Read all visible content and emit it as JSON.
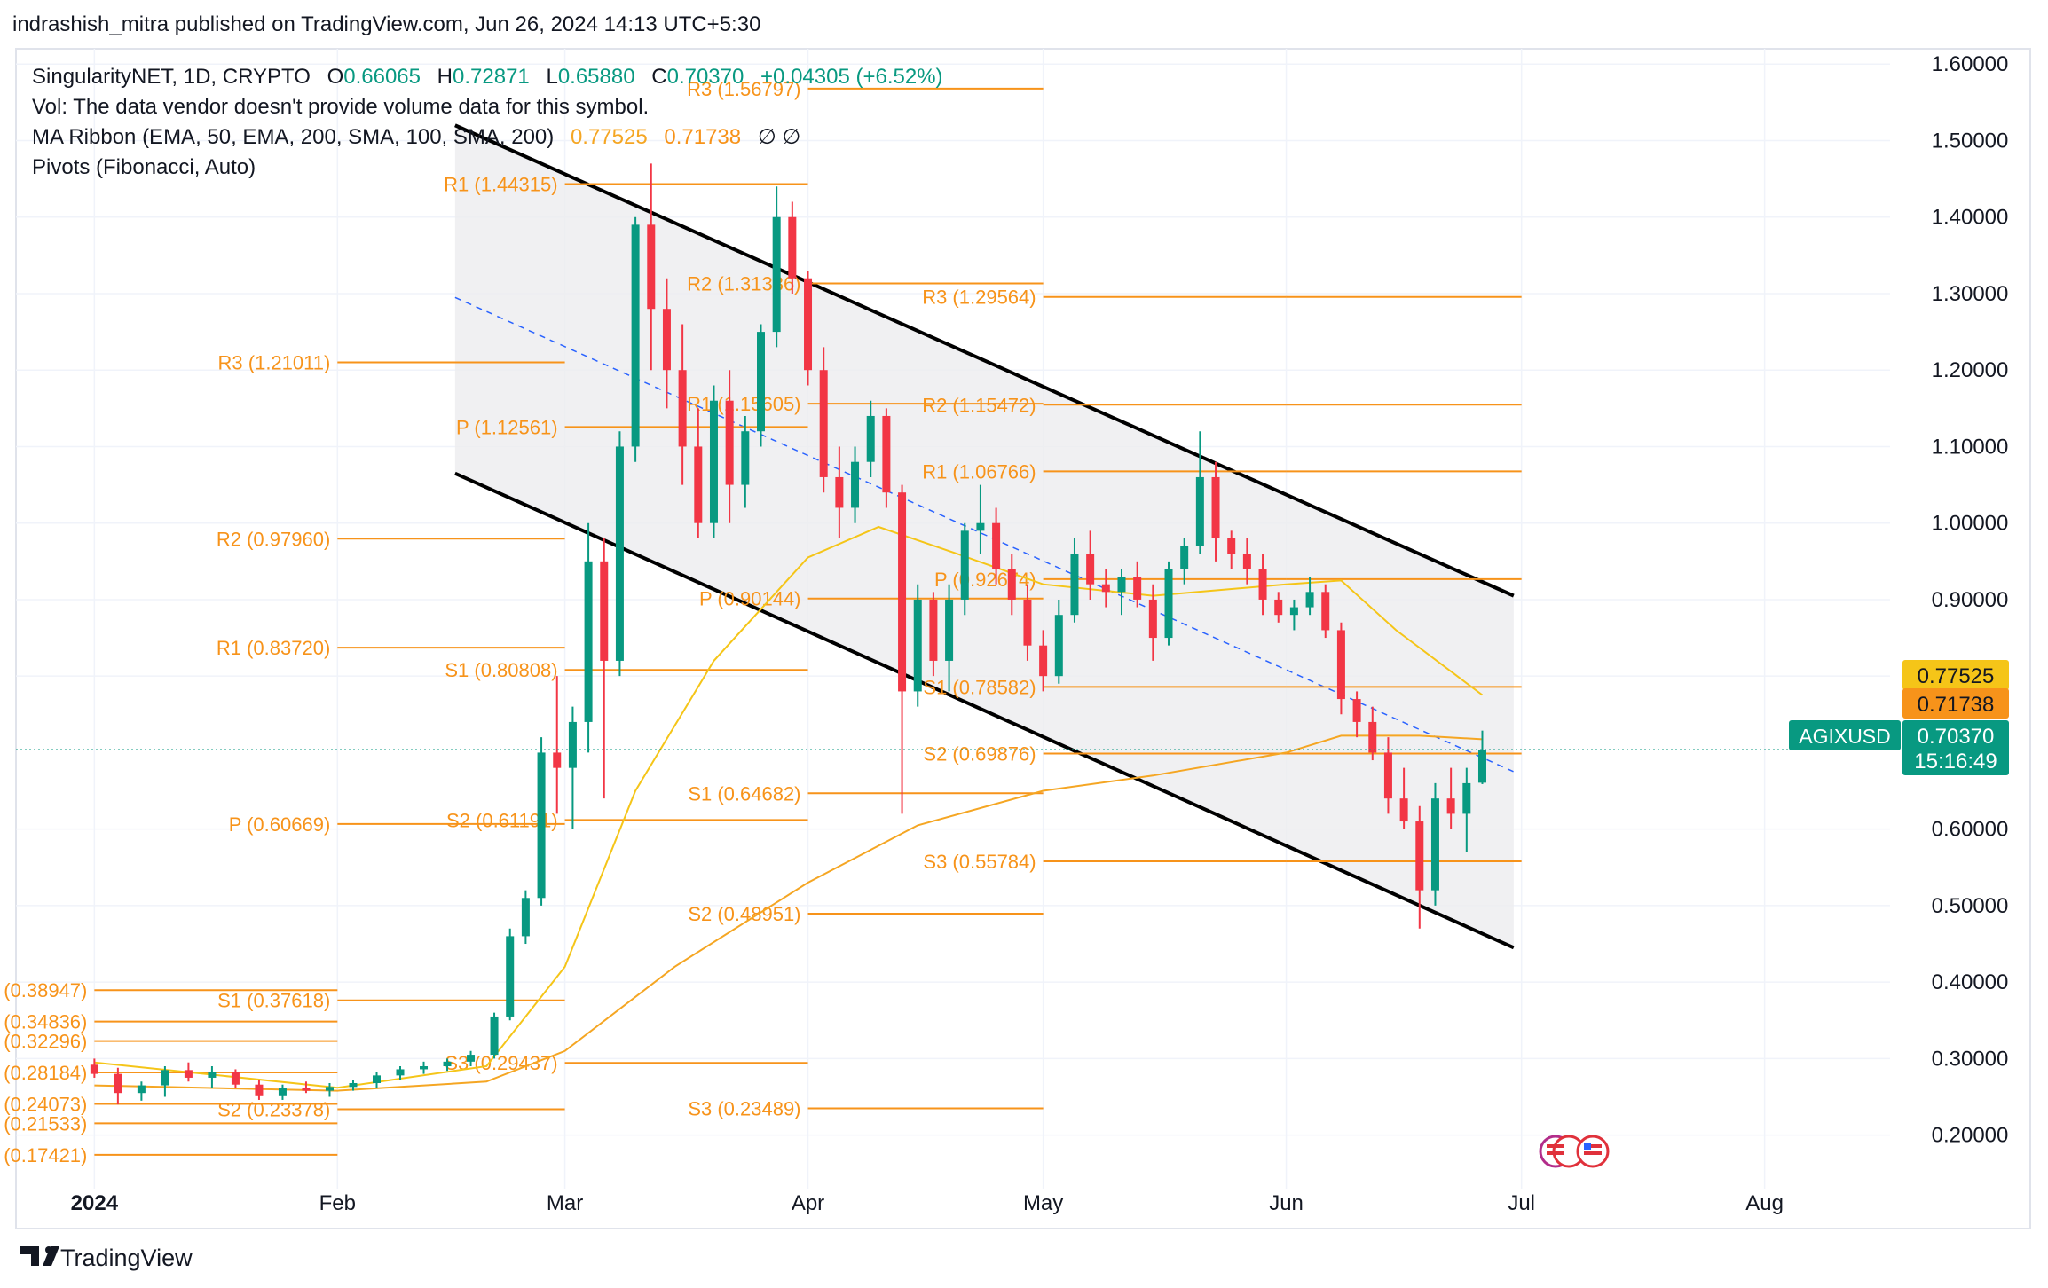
{
  "page": {
    "publish_note": "indrashish_mitra published on TradingView.com, Jun 26, 2024 14:13 UTC+5:30",
    "brand": "TradingView"
  },
  "legend": {
    "symbol_line": "SingularityNET, 1D, CRYPTO",
    "o_label": "O",
    "o_value": "0.66065",
    "h_label": "H",
    "h_value": "0.72871",
    "l_label": "L",
    "l_value": "0.65880",
    "c_label": "C",
    "c_value": "0.70370",
    "change": "+0.04305 (+6.52%)",
    "vol_line": "Vol: The data vendor doesn't provide volume data for this symbol.",
    "ma_line": "MA Ribbon (EMA, 50, EMA, 200, SMA, 100, SMA, 200)",
    "ma_val1": "0.77525",
    "ma_val2": "0.71738",
    "ma_na": "∅ ∅",
    "pivots_line": "Pivots (Fibonacci, Auto)"
  },
  "price_badges": {
    "ema50": "0.77525",
    "ema200": "0.71738",
    "symbol": "AGIXUSD",
    "last": "0.70370",
    "countdown": "15:16:49"
  },
  "colors": {
    "up": "#089981",
    "down": "#f23645",
    "pivot": "#f7931a",
    "ema50": "#f5c518",
    "ema200": "#f5a623",
    "channel_fill": "#ececef",
    "channel_line": "#000000",
    "midline": "#2962ff"
  },
  "chart_data": {
    "type": "candlestick",
    "title": "SingularityNET, 1D, CRYPTO",
    "ylim": [
      0.13,
      1.62
    ],
    "y_ticks": [
      "1.60000",
      "1.50000",
      "1.40000",
      "1.30000",
      "1.20000",
      "1.10000",
      "1.00000",
      "0.90000",
      "0.80000",
      "0.60000",
      "0.50000",
      "0.40000",
      "0.30000",
      "0.20000"
    ],
    "y_tick_values": [
      1.6,
      1.5,
      1.4,
      1.3,
      1.2,
      1.1,
      1.0,
      0.9,
      0.8,
      0.6,
      0.5,
      0.4,
      0.3,
      0.2
    ],
    "x_ticks": [
      {
        "label": "2024",
        "date": "2024-01-01",
        "bold": true
      },
      {
        "label": "Feb",
        "date": "2024-02-01"
      },
      {
        "label": "Mar",
        "date": "2024-03-01"
      },
      {
        "label": "Apr",
        "date": "2024-04-01"
      },
      {
        "label": "May",
        "date": "2024-05-01"
      },
      {
        "label": "Jun",
        "date": "2024-06-01"
      },
      {
        "label": "Jul",
        "date": "2024-07-01"
      },
      {
        "label": "Aug",
        "date": "2024-08-01"
      }
    ],
    "x_range": [
      "2023-12-22",
      "2024-08-17"
    ],
    "candles": [
      {
        "date": "2024-01-01",
        "o": 0.292,
        "h": 0.3,
        "l": 0.275,
        "c": 0.28
      },
      {
        "date": "2024-01-04",
        "o": 0.28,
        "h": 0.288,
        "l": 0.24,
        "c": 0.255
      },
      {
        "date": "2024-01-07",
        "o": 0.255,
        "h": 0.27,
        "l": 0.245,
        "c": 0.265
      },
      {
        "date": "2024-01-10",
        "o": 0.265,
        "h": 0.29,
        "l": 0.25,
        "c": 0.285
      },
      {
        "date": "2024-01-13",
        "o": 0.285,
        "h": 0.295,
        "l": 0.27,
        "c": 0.275
      },
      {
        "date": "2024-01-16",
        "o": 0.275,
        "h": 0.29,
        "l": 0.262,
        "c": 0.282
      },
      {
        "date": "2024-01-19",
        "o": 0.282,
        "h": 0.286,
        "l": 0.262,
        "c": 0.266
      },
      {
        "date": "2024-01-22",
        "o": 0.266,
        "h": 0.272,
        "l": 0.246,
        "c": 0.252
      },
      {
        "date": "2024-01-25",
        "o": 0.252,
        "h": 0.266,
        "l": 0.246,
        "c": 0.262
      },
      {
        "date": "2024-01-28",
        "o": 0.262,
        "h": 0.27,
        "l": 0.255,
        "c": 0.258
      },
      {
        "date": "2024-01-31",
        "o": 0.258,
        "h": 0.268,
        "l": 0.25,
        "c": 0.263
      },
      {
        "date": "2024-02-03",
        "o": 0.263,
        "h": 0.272,
        "l": 0.258,
        "c": 0.268
      },
      {
        "date": "2024-02-06",
        "o": 0.268,
        "h": 0.282,
        "l": 0.262,
        "c": 0.278
      },
      {
        "date": "2024-02-09",
        "o": 0.278,
        "h": 0.29,
        "l": 0.272,
        "c": 0.286
      },
      {
        "date": "2024-02-12",
        "o": 0.286,
        "h": 0.296,
        "l": 0.28,
        "c": 0.29
      },
      {
        "date": "2024-02-15",
        "o": 0.29,
        "h": 0.3,
        "l": 0.284,
        "c": 0.296
      },
      {
        "date": "2024-02-18",
        "o": 0.296,
        "h": 0.31,
        "l": 0.29,
        "c": 0.305
      },
      {
        "date": "2024-02-21",
        "o": 0.305,
        "h": 0.36,
        "l": 0.3,
        "c": 0.355
      },
      {
        "date": "2024-02-23",
        "o": 0.355,
        "h": 0.47,
        "l": 0.35,
        "c": 0.46
      },
      {
        "date": "2024-02-25",
        "o": 0.46,
        "h": 0.52,
        "l": 0.45,
        "c": 0.51
      },
      {
        "date": "2024-02-27",
        "o": 0.51,
        "h": 0.72,
        "l": 0.5,
        "c": 0.7
      },
      {
        "date": "2024-02-29",
        "o": 0.7,
        "h": 0.8,
        "l": 0.62,
        "c": 0.68
      },
      {
        "date": "2024-03-02",
        "o": 0.68,
        "h": 0.76,
        "l": 0.6,
        "c": 0.74
      },
      {
        "date": "2024-03-04",
        "o": 0.74,
        "h": 1.0,
        "l": 0.7,
        "c": 0.95
      },
      {
        "date": "2024-03-06",
        "o": 0.95,
        "h": 0.98,
        "l": 0.64,
        "c": 0.82
      },
      {
        "date": "2024-03-08",
        "o": 0.82,
        "h": 1.12,
        "l": 0.8,
        "c": 1.1
      },
      {
        "date": "2024-03-10",
        "o": 1.1,
        "h": 1.4,
        "l": 1.08,
        "c": 1.39
      },
      {
        "date": "2024-03-12",
        "o": 1.39,
        "h": 1.47,
        "l": 1.2,
        "c": 1.28
      },
      {
        "date": "2024-03-14",
        "o": 1.28,
        "h": 1.32,
        "l": 1.15,
        "c": 1.2
      },
      {
        "date": "2024-03-16",
        "o": 1.2,
        "h": 1.26,
        "l": 1.05,
        "c": 1.1
      },
      {
        "date": "2024-03-18",
        "o": 1.1,
        "h": 1.15,
        "l": 0.98,
        "c": 1.0
      },
      {
        "date": "2024-03-20",
        "o": 1.0,
        "h": 1.18,
        "l": 0.98,
        "c": 1.16
      },
      {
        "date": "2024-03-22",
        "o": 1.16,
        "h": 1.2,
        "l": 1.0,
        "c": 1.05
      },
      {
        "date": "2024-03-24",
        "o": 1.05,
        "h": 1.14,
        "l": 1.02,
        "c": 1.12
      },
      {
        "date": "2024-03-26",
        "o": 1.12,
        "h": 1.26,
        "l": 1.1,
        "c": 1.25
      },
      {
        "date": "2024-03-28",
        "o": 1.25,
        "h": 1.44,
        "l": 1.23,
        "c": 1.4
      },
      {
        "date": "2024-03-30",
        "o": 1.4,
        "h": 1.42,
        "l": 1.3,
        "c": 1.32
      },
      {
        "date": "2024-04-01",
        "o": 1.32,
        "h": 1.33,
        "l": 1.18,
        "c": 1.2
      },
      {
        "date": "2024-04-03",
        "o": 1.2,
        "h": 1.23,
        "l": 1.04,
        "c": 1.06
      },
      {
        "date": "2024-04-05",
        "o": 1.06,
        "h": 1.1,
        "l": 0.98,
        "c": 1.02
      },
      {
        "date": "2024-04-07",
        "o": 1.02,
        "h": 1.1,
        "l": 1.0,
        "c": 1.08
      },
      {
        "date": "2024-04-09",
        "o": 1.08,
        "h": 1.16,
        "l": 1.06,
        "c": 1.14
      },
      {
        "date": "2024-04-11",
        "o": 1.14,
        "h": 1.15,
        "l": 1.02,
        "c": 1.04
      },
      {
        "date": "2024-04-13",
        "o": 1.04,
        "h": 1.05,
        "l": 0.62,
        "c": 0.78
      },
      {
        "date": "2024-04-15",
        "o": 0.78,
        "h": 0.92,
        "l": 0.76,
        "c": 0.9
      },
      {
        "date": "2024-04-17",
        "o": 0.9,
        "h": 0.91,
        "l": 0.8,
        "c": 0.82
      },
      {
        "date": "2024-04-19",
        "o": 0.82,
        "h": 0.92,
        "l": 0.78,
        "c": 0.9
      },
      {
        "date": "2024-04-21",
        "o": 0.9,
        "h": 1.0,
        "l": 0.88,
        "c": 0.99
      },
      {
        "date": "2024-04-23",
        "o": 0.99,
        "h": 1.05,
        "l": 0.96,
        "c": 1.0
      },
      {
        "date": "2024-04-25",
        "o": 1.0,
        "h": 1.02,
        "l": 0.92,
        "c": 0.94
      },
      {
        "date": "2024-04-27",
        "o": 0.94,
        "h": 0.96,
        "l": 0.88,
        "c": 0.9
      },
      {
        "date": "2024-04-29",
        "o": 0.9,
        "h": 0.92,
        "l": 0.82,
        "c": 0.84
      },
      {
        "date": "2024-05-01",
        "o": 0.84,
        "h": 0.86,
        "l": 0.78,
        "c": 0.8
      },
      {
        "date": "2024-05-03",
        "o": 0.8,
        "h": 0.9,
        "l": 0.79,
        "c": 0.88
      },
      {
        "date": "2024-05-05",
        "o": 0.88,
        "h": 0.98,
        "l": 0.87,
        "c": 0.96
      },
      {
        "date": "2024-05-07",
        "o": 0.96,
        "h": 0.99,
        "l": 0.9,
        "c": 0.92
      },
      {
        "date": "2024-05-09",
        "o": 0.92,
        "h": 0.94,
        "l": 0.89,
        "c": 0.91
      },
      {
        "date": "2024-05-11",
        "o": 0.91,
        "h": 0.94,
        "l": 0.88,
        "c": 0.93
      },
      {
        "date": "2024-05-13",
        "o": 0.93,
        "h": 0.95,
        "l": 0.89,
        "c": 0.9
      },
      {
        "date": "2024-05-15",
        "o": 0.9,
        "h": 0.92,
        "l": 0.82,
        "c": 0.85
      },
      {
        "date": "2024-05-17",
        "o": 0.85,
        "h": 0.95,
        "l": 0.84,
        "c": 0.94
      },
      {
        "date": "2024-05-19",
        "o": 0.94,
        "h": 0.98,
        "l": 0.92,
        "c": 0.97
      },
      {
        "date": "2024-05-21",
        "o": 0.97,
        "h": 1.12,
        "l": 0.96,
        "c": 1.06
      },
      {
        "date": "2024-05-23",
        "o": 1.06,
        "h": 1.08,
        "l": 0.95,
        "c": 0.98
      },
      {
        "date": "2024-05-25",
        "o": 0.98,
        "h": 0.99,
        "l": 0.94,
        "c": 0.96
      },
      {
        "date": "2024-05-27",
        "o": 0.96,
        "h": 0.98,
        "l": 0.92,
        "c": 0.94
      },
      {
        "date": "2024-05-29",
        "o": 0.94,
        "h": 0.96,
        "l": 0.88,
        "c": 0.9
      },
      {
        "date": "2024-05-31",
        "o": 0.9,
        "h": 0.91,
        "l": 0.87,
        "c": 0.88
      },
      {
        "date": "2024-06-02",
        "o": 0.88,
        "h": 0.9,
        "l": 0.86,
        "c": 0.89
      },
      {
        "date": "2024-06-04",
        "o": 0.89,
        "h": 0.93,
        "l": 0.88,
        "c": 0.91
      },
      {
        "date": "2024-06-06",
        "o": 0.91,
        "h": 0.92,
        "l": 0.85,
        "c": 0.86
      },
      {
        "date": "2024-06-08",
        "o": 0.86,
        "h": 0.87,
        "l": 0.75,
        "c": 0.77
      },
      {
        "date": "2024-06-10",
        "o": 0.77,
        "h": 0.78,
        "l": 0.72,
        "c": 0.74
      },
      {
        "date": "2024-06-12",
        "o": 0.74,
        "h": 0.76,
        "l": 0.69,
        "c": 0.7
      },
      {
        "date": "2024-06-14",
        "o": 0.7,
        "h": 0.72,
        "l": 0.62,
        "c": 0.64
      },
      {
        "date": "2024-06-16",
        "o": 0.64,
        "h": 0.68,
        "l": 0.6,
        "c": 0.61
      },
      {
        "date": "2024-06-18",
        "o": 0.61,
        "h": 0.63,
        "l": 0.47,
        "c": 0.52
      },
      {
        "date": "2024-06-20",
        "o": 0.52,
        "h": 0.66,
        "l": 0.5,
        "c": 0.64
      },
      {
        "date": "2024-06-22",
        "o": 0.64,
        "h": 0.68,
        "l": 0.6,
        "c": 0.62
      },
      {
        "date": "2024-06-24",
        "o": 0.62,
        "h": 0.68,
        "l": 0.57,
        "c": 0.66
      },
      {
        "date": "2024-06-26",
        "o": 0.66065,
        "h": 0.72871,
        "l": 0.6588,
        "c": 0.7037
      }
    ],
    "ema50": [
      {
        "date": "2024-01-01",
        "v": 0.295
      },
      {
        "date": "2024-02-01",
        "v": 0.262
      },
      {
        "date": "2024-02-20",
        "v": 0.29
      },
      {
        "date": "2024-03-01",
        "v": 0.42
      },
      {
        "date": "2024-03-10",
        "v": 0.65
      },
      {
        "date": "2024-03-20",
        "v": 0.82
      },
      {
        "date": "2024-04-01",
        "v": 0.955
      },
      {
        "date": "2024-04-10",
        "v": 0.995
      },
      {
        "date": "2024-04-20",
        "v": 0.96
      },
      {
        "date": "2024-05-01",
        "v": 0.92
      },
      {
        "date": "2024-05-15",
        "v": 0.905
      },
      {
        "date": "2024-06-01",
        "v": 0.92
      },
      {
        "date": "2024-06-08",
        "v": 0.925
      },
      {
        "date": "2024-06-15",
        "v": 0.86
      },
      {
        "date": "2024-06-26",
        "v": 0.77525
      }
    ],
    "ema200": [
      {
        "date": "2024-01-01",
        "v": 0.265
      },
      {
        "date": "2024-02-01",
        "v": 0.258
      },
      {
        "date": "2024-02-20",
        "v": 0.27
      },
      {
        "date": "2024-03-01",
        "v": 0.31
      },
      {
        "date": "2024-03-15",
        "v": 0.42
      },
      {
        "date": "2024-04-01",
        "v": 0.53
      },
      {
        "date": "2024-04-15",
        "v": 0.605
      },
      {
        "date": "2024-05-01",
        "v": 0.65
      },
      {
        "date": "2024-05-15",
        "v": 0.67
      },
      {
        "date": "2024-06-01",
        "v": 0.7
      },
      {
        "date": "2024-06-08",
        "v": 0.722
      },
      {
        "date": "2024-06-18",
        "v": 0.722
      },
      {
        "date": "2024-06-26",
        "v": 0.71738
      }
    ],
    "channel": {
      "upper": [
        {
          "date": "2024-02-16",
          "v": 1.52
        },
        {
          "date": "2024-06-30",
          "v": 0.905
        }
      ],
      "lower": [
        {
          "date": "2024-02-16",
          "v": 1.065
        },
        {
          "date": "2024-06-30",
          "v": 0.445
        }
      ],
      "mid": [
        {
          "date": "2024-02-16",
          "v": 1.295
        },
        {
          "date": "2024-06-30",
          "v": 0.675
        }
      ]
    },
    "pivot_periods": [
      {
        "start": "2024-01-01",
        "end": "2024-02-01",
        "label_side": "left",
        "levels": [
          {
            "name": "R3",
            "value": 0.38947,
            "text": "R3 (0.38947)"
          },
          {
            "name": "R2",
            "value": 0.34836,
            "text": "R2 (0.34836)"
          },
          {
            "name": "R1",
            "value": 0.32296,
            "text": "R1 (0.32296)"
          },
          {
            "name": "P",
            "value": 0.28184,
            "text": "P (0.28184)"
          },
          {
            "name": "S1",
            "value": 0.24073,
            "text": "S1 (0.24073)"
          },
          {
            "name": "S2",
            "value": 0.21533,
            "text": "S2 (0.21533)"
          },
          {
            "name": "S3",
            "value": 0.17421,
            "text": "S3 (0.17421)"
          }
        ]
      },
      {
        "start": "2024-02-01",
        "end": "2024-03-01",
        "label_side": "left",
        "levels": [
          {
            "name": "R3",
            "value": 1.21011,
            "text": "R3 (1.21011)"
          },
          {
            "name": "R2",
            "value": 0.9796,
            "text": "R2 (0.97960)"
          },
          {
            "name": "R1",
            "value": 0.8372,
            "text": "R1 (0.83720)"
          },
          {
            "name": "P",
            "value": 0.60669,
            "text": "P (0.60669)"
          },
          {
            "name": "S1",
            "value": 0.37618,
            "text": "S1 (0.37618)"
          },
          {
            "name": "S2",
            "value": 0.23378,
            "text": "S2 (0.23378)"
          }
        ]
      },
      {
        "start": "2024-03-01",
        "end": "2024-04-01",
        "label_side": "left",
        "levels": [
          {
            "name": "R1",
            "value": 1.44315,
            "text": "R1 (1.44315)"
          },
          {
            "name": "P",
            "value": 1.12561,
            "text": "P (1.12561)"
          },
          {
            "name": "S1",
            "value": 0.80808,
            "text": "S1 (0.80808)"
          },
          {
            "name": "S2",
            "value": 0.61191,
            "text": "S2 (0.61191)"
          },
          {
            "name": "S3",
            "value": 0.29437,
            "text": "S3 (0.29437)"
          }
        ]
      },
      {
        "start": "2024-04-01",
        "end": "2024-05-01",
        "label_side": "left",
        "levels": [
          {
            "name": "R3",
            "value": 1.56797,
            "text": "R3 (1.56797)"
          },
          {
            "name": "R2",
            "value": 1.31336,
            "text": "R2 (1.31336)"
          },
          {
            "name": "R1",
            "value": 1.15605,
            "text": "R1 (1.15605)"
          },
          {
            "name": "P",
            "value": 0.90144,
            "text": "P (0.90144)"
          },
          {
            "name": "S1",
            "value": 0.64682,
            "text": "S1 (0.64682)"
          },
          {
            "name": "S2",
            "value": 0.48951,
            "text": "S2 (0.48951)"
          },
          {
            "name": "S3",
            "value": 0.23489,
            "text": "S3 (0.23489)"
          }
        ]
      },
      {
        "start": "2024-05-01",
        "end": "2024-06-01",
        "label_side": "left",
        "levels": [
          {
            "name": "R3",
            "value": 1.29564,
            "text": "R3 (1.29564)"
          },
          {
            "name": "R2",
            "value": 1.15472,
            "text": "R2 (1.15472)"
          },
          {
            "name": "R1",
            "value": 1.06766,
            "text": "R1 (1.06766)"
          },
          {
            "name": "P",
            "value": 0.92674,
            "text": "P (0.92674)"
          },
          {
            "name": "S1",
            "value": 0.78582,
            "text": "S1 (0.78582)"
          },
          {
            "name": "S2",
            "value": 0.69876,
            "text": "S2 (0.69876)"
          },
          {
            "name": "S3",
            "value": 0.55784,
            "text": "S3 (0.55784)"
          }
        ]
      },
      {
        "start": "2024-06-01",
        "end": "2024-07-01",
        "label_side": "none",
        "levels": [
          {
            "name": "R3",
            "value": 1.29564,
            "text": ""
          },
          {
            "name": "R2",
            "value": 1.15472,
            "text": ""
          },
          {
            "name": "R1",
            "value": 1.06766,
            "text": ""
          },
          {
            "name": "P",
            "value": 0.92674,
            "text": ""
          },
          {
            "name": "S1",
            "value": 0.78582,
            "text": ""
          },
          {
            "name": "S2",
            "value": 0.69876,
            "text": ""
          },
          {
            "name": "S3",
            "value": 0.55784,
            "text": ""
          }
        ]
      }
    ],
    "grid": true,
    "last_price": 0.7037
  }
}
